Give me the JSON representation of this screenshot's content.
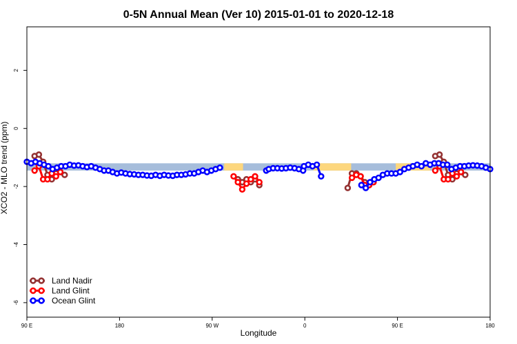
{
  "chart_data": {
    "type": "line",
    "title": "0-5N Annual Mean (Ver 10)   2015-01-01 to 2020-12-18",
    "xlabel": "Longitude",
    "ylabel": "XCO2 - MLO trend (ppm)",
    "xlim": [
      -90,
      180
    ],
    "ylim": [
      -6.5,
      3.5
    ],
    "x_ticks": [
      {
        "value": -90,
        "label": "90 E"
      },
      {
        "value": -36,
        "label": "180"
      },
      {
        "value": 18,
        "label": "90 W"
      },
      {
        "value": 72,
        "label": "0"
      },
      {
        "value": 126,
        "label": "90 E"
      },
      {
        "value": 180,
        "label": "180"
      }
    ],
    "y_ticks": [
      {
        "value": -6,
        "label": "-6"
      },
      {
        "value": -4,
        "label": "-4"
      },
      {
        "value": -2,
        "label": "-2"
      },
      {
        "value": 0,
        "label": "0"
      },
      {
        "value": 2,
        "label": "2"
      }
    ],
    "grid": false,
    "legend_position": "bottom-left",
    "band": {
      "color": "#a6bddb",
      "y_low": -1.45,
      "y_high": -1.2,
      "land_segments": [
        [
          25,
          36
        ],
        [
          77,
          99
        ]
      ],
      "land_color": "#fdd77e",
      "land_segments_offset": [
        [
          125,
          145
        ]
      ]
    },
    "series": [
      {
        "name": "Land Nadir",
        "color": "#943232",
        "segments": [
          [
            [
              -85.5,
              -0.95
            ],
            [
              -83,
              -0.9
            ],
            [
              -80.5,
              -1.15
            ],
            [
              -78,
              -1.6
            ],
            [
              -75.5,
              -1.75
            ],
            [
              -73,
              -1.55
            ],
            [
              -68,
              -1.6
            ]
          ],
          [
            [
              33,
              -1.75
            ],
            [
              35.5,
              -1.85
            ],
            [
              38,
              -1.75
            ],
            [
              40.5,
              -1.85
            ],
            [
              43,
              -1.75
            ],
            [
              45.5,
              -1.95
            ]
          ],
          [
            [
              97,
              -2.05
            ],
            [
              99.5,
              -1.55
            ],
            [
              102,
              -1.55
            ],
            [
              104.5,
              -1.65
            ],
            [
              107,
              -1.85
            ],
            [
              109.5,
              -1.95
            ],
            [
              112,
              -1.85
            ]
          ],
          [
            [
              148,
              -0.95
            ],
            [
              150.5,
              -0.9
            ],
            [
              153,
              -1.15
            ],
            [
              155.5,
              -1.6
            ],
            [
              158,
              -1.75
            ],
            [
              160.5,
              -1.55
            ],
            [
              165.5,
              -1.6
            ]
          ]
        ]
      },
      {
        "name": "Land Glint",
        "color": "#ff0000",
        "segments": [
          [
            [
              -85.5,
              -1.45
            ],
            [
              -83,
              -1.3
            ],
            [
              -80.5,
              -1.75
            ],
            [
              -78,
              -1.75
            ],
            [
              -75.5,
              -1.55
            ],
            [
              -73,
              -1.65
            ],
            [
              -70.5,
              -1.5
            ]
          ],
          [
            [
              30.5,
              -1.65
            ],
            [
              33,
              -1.85
            ],
            [
              35.5,
              -2.1
            ],
            [
              38,
              -1.9
            ],
            [
              40.5,
              -1.75
            ],
            [
              43,
              -1.65
            ],
            [
              45.5,
              -1.85
            ]
          ],
          [
            [
              99.5,
              -1.7
            ],
            [
              102,
              -1.6
            ],
            [
              104.5,
              -1.65
            ],
            [
              107,
              -1.95
            ],
            [
              109.5,
              -1.95
            ],
            [
              112,
              -1.85
            ]
          ],
          [
            [
              148,
              -1.45
            ],
            [
              150.5,
              -1.3
            ],
            [
              153,
              -1.75
            ],
            [
              155.5,
              -1.75
            ],
            [
              158,
              -1.55
            ],
            [
              160.5,
              -1.65
            ],
            [
              163,
              -1.5
            ]
          ]
        ]
      },
      {
        "name": "Ocean Glint",
        "color": "#0000ff",
        "segments": [
          [
            [
              -90,
              -1.15
            ],
            [
              -87.5,
              -1.2
            ],
            [
              -85,
              -1.15
            ],
            [
              -82.5,
              -1.2
            ],
            [
              -80,
              -1.25
            ],
            [
              -77.5,
              -1.3
            ],
            [
              -75,
              -1.4
            ],
            [
              -72.5,
              -1.35
            ],
            [
              -70,
              -1.3
            ],
            [
              -67.5,
              -1.3
            ],
            [
              -65,
              -1.25
            ],
            [
              -62.5,
              -1.28
            ],
            [
              -60,
              -1.27
            ],
            [
              -57.5,
              -1.3
            ],
            [
              -55,
              -1.33
            ],
            [
              -52.5,
              -1.3
            ],
            [
              -50,
              -1.35
            ],
            [
              -47.5,
              -1.4
            ],
            [
              -45,
              -1.45
            ],
            [
              -42.5,
              -1.45
            ],
            [
              -40,
              -1.5
            ],
            [
              -37.5,
              -1.55
            ],
            [
              -35,
              -1.52
            ],
            [
              -32.5,
              -1.55
            ],
            [
              -30,
              -1.57
            ],
            [
              -27.5,
              -1.58
            ],
            [
              -25,
              -1.6
            ],
            [
              -22.5,
              -1.6
            ],
            [
              -20,
              -1.62
            ],
            [
              -17.5,
              -1.63
            ],
            [
              -15,
              -1.6
            ],
            [
              -12.5,
              -1.63
            ],
            [
              -10,
              -1.6
            ],
            [
              -7.5,
              -1.62
            ],
            [
              -5,
              -1.63
            ],
            [
              -2.5,
              -1.6
            ],
            [
              0,
              -1.6
            ],
            [
              2.5,
              -1.58
            ],
            [
              5,
              -1.55
            ],
            [
              7.5,
              -1.55
            ],
            [
              10,
              -1.5
            ],
            [
              12.5,
              -1.45
            ],
            [
              15,
              -1.5
            ],
            [
              17.5,
              -1.45
            ],
            [
              20,
              -1.4
            ],
            [
              22.5,
              -1.35
            ]
          ],
          [
            [
              49.5,
              -1.45
            ],
            [
              51,
              -1.4
            ],
            [
              53.5,
              -1.37
            ],
            [
              56,
              -1.37
            ],
            [
              58.5,
              -1.38
            ],
            [
              61,
              -1.37
            ],
            [
              63.5,
              -1.35
            ],
            [
              66,
              -1.37
            ],
            [
              68.5,
              -1.4
            ],
            [
              71,
              -1.45
            ]
          ],
          [
            [
              71.5,
              -1.3
            ],
            [
              74,
              -1.25
            ],
            [
              76.5,
              -1.3
            ],
            [
              79,
              -1.25
            ],
            [
              81.5,
              -1.65
            ]
          ],
          [
            [
              105,
              -1.95
            ],
            [
              107.5,
              -2.05
            ],
            [
              110,
              -1.85
            ],
            [
              112.5,
              -1.75
            ],
            [
              115,
              -1.7
            ],
            [
              117.5,
              -1.6
            ],
            [
              120,
              -1.55
            ],
            [
              122.5,
              -1.55
            ],
            [
              125,
              -1.55
            ],
            [
              127.5,
              -1.5
            ],
            [
              130,
              -1.4
            ],
            [
              132.5,
              -1.35
            ],
            [
              135,
              -1.3
            ],
            [
              137.5,
              -1.25
            ],
            [
              140,
              -1.3
            ],
            [
              142.5,
              -1.2
            ],
            [
              145,
              -1.25
            ],
            [
              147.5,
              -1.2
            ],
            [
              150,
              -1.2
            ],
            [
              152.5,
              -1.25
            ],
            [
              155,
              -1.25
            ],
            [
              157.5,
              -1.4
            ],
            [
              160,
              -1.35
            ],
            [
              162.5,
              -1.3
            ],
            [
              165,
              -1.3
            ],
            [
              167.5,
              -1.28
            ],
            [
              170,
              -1.27
            ],
            [
              172.5,
              -1.28
            ],
            [
              175,
              -1.3
            ],
            [
              177.5,
              -1.35
            ],
            [
              180,
              -1.4
            ]
          ]
        ]
      }
    ]
  }
}
